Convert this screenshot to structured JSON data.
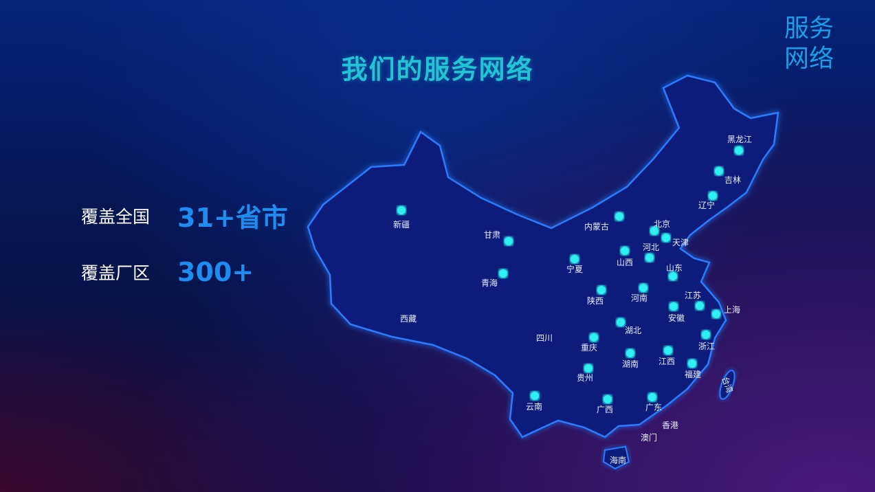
{
  "corner_title": [
    "服务",
    "网络"
  ],
  "title": "我们的服务网络",
  "stats": [
    {
      "label": "覆盖全国",
      "value": "31+省市"
    },
    {
      "label": "覆盖厂区",
      "value": "300+"
    }
  ],
  "colors": {
    "title": "#22c4d4",
    "accent": "#1e8cf0",
    "marker": "#2ff0f0",
    "map_fill": "#0a1f7a",
    "map_border": "#2a7cff"
  },
  "map": {
    "markers": [
      "新疆",
      "甘肃",
      "青海",
      "内蒙古",
      "宁夏",
      "陕西",
      "山西",
      "北京",
      "天津",
      "河北",
      "山东",
      "河南",
      "江苏",
      "上海",
      "安徽",
      "湖北",
      "重庆",
      "浙江",
      "湖南",
      "江西",
      "福建",
      "贵州",
      "云南",
      "广西",
      "广东",
      "辽宁",
      "吉林",
      "黑龙江"
    ],
    "labels_only": [
      "西藏",
      "四川",
      "香港",
      "澳门",
      "海南"
    ],
    "taiwan": "台湾"
  }
}
